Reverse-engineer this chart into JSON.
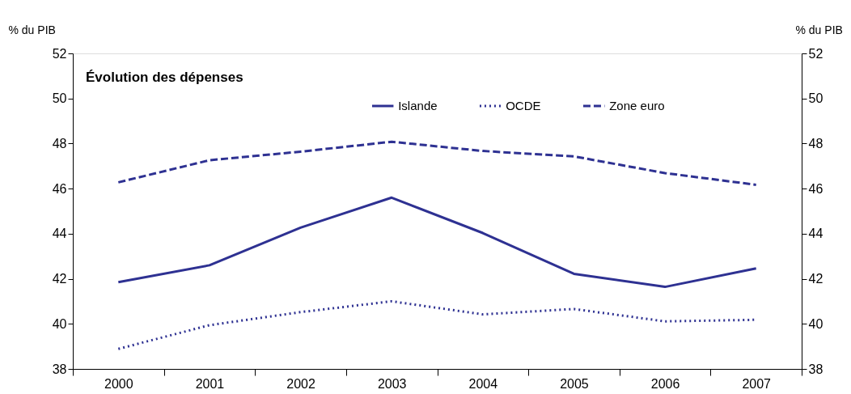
{
  "chart_data": {
    "type": "line",
    "title": "Évolution des dépenses",
    "ylabel": "% du PIB",
    "y2label": "% du PIB",
    "categories": [
      "2000",
      "2001",
      "2002",
      "2003",
      "2004",
      "2005",
      "2006",
      "2007"
    ],
    "series": [
      {
        "name": "Islande",
        "color": "#2e3192",
        "line_style": "solid",
        "values": [
          41.85,
          42.6,
          44.27,
          45.6,
          44.03,
          42.22,
          41.64,
          42.46
        ]
      },
      {
        "name": "OCDE",
        "color": "#2e3192",
        "line_style": "dotted",
        "values": [
          38.89,
          39.94,
          40.52,
          41.0,
          40.42,
          40.66,
          40.11,
          40.18
        ]
      },
      {
        "name": "Zone euro",
        "color": "#2e3192",
        "line_style": "dashed",
        "values": [
          46.28,
          47.26,
          47.64,
          48.08,
          47.67,
          47.43,
          46.69,
          46.17
        ]
      }
    ],
    "ylim": [
      38,
      52
    ],
    "yticks": [
      38,
      40,
      42,
      44,
      46,
      48,
      50,
      52
    ],
    "y2lim": [
      38,
      52
    ],
    "y2ticks": [
      38,
      40,
      42,
      44,
      46,
      48,
      50,
      52
    ],
    "grid": false,
    "legend": "top",
    "marker": "none"
  }
}
